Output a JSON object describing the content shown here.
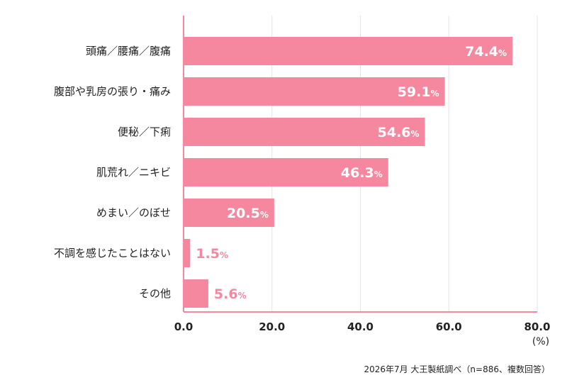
{
  "chart_data": {
    "type": "bar",
    "orientation": "horizontal",
    "categories": [
      "頭痛／腰痛／腹痛",
      "腹部や乳房の張り・痛み",
      "便秘／下痢",
      "肌荒れ／ニキビ",
      "めまい／のぼせ",
      "不調を感じたことはない",
      "その他"
    ],
    "values": [
      74.4,
      59.1,
      54.6,
      46.3,
      20.5,
      1.5,
      5.6
    ],
    "value_labels": [
      "74.4",
      "59.1",
      "54.6",
      "46.3",
      "20.5",
      "1.5",
      "5.6"
    ],
    "value_suffix": "%",
    "xlim": [
      0,
      80
    ],
    "xticks": [
      "0.0",
      "20.0",
      "40.0",
      "60.0",
      "80.0"
    ],
    "xunit": "(%)",
    "grid": "vertical",
    "bar_color": "#f5879f",
    "label_color": "#f5879f",
    "inside_label_color": "#ffffff"
  },
  "source": "2026年7月 大王製紙調べ（n=886、複数回答）"
}
